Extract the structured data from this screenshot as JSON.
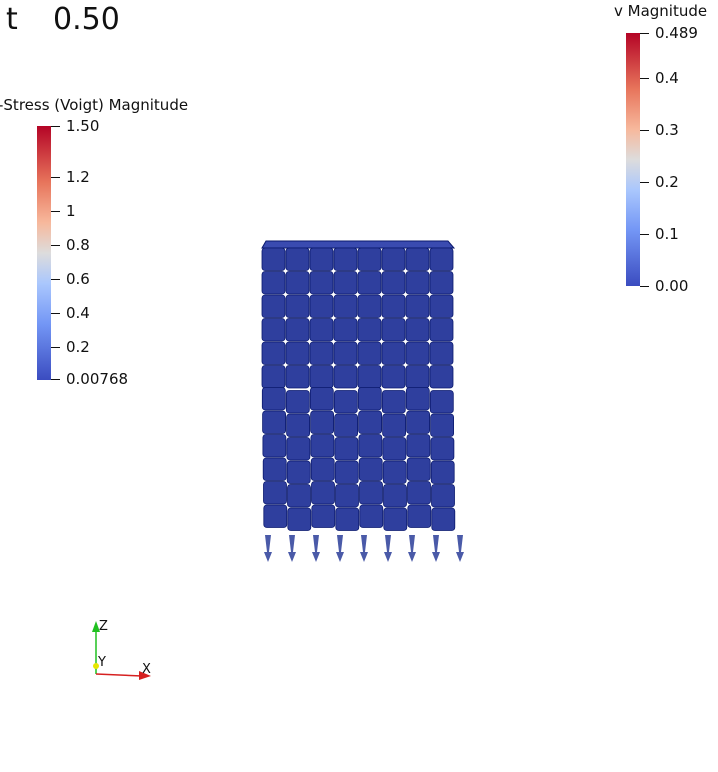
{
  "time": {
    "label": "t",
    "value": "0.50"
  },
  "stress_legend": {
    "title": "-Stress (Voigt) Magnitude",
    "labels": [
      "1.50",
      "1.2",
      "1",
      "0.8",
      "0.6",
      "0.4",
      "0.2",
      "0.00768"
    ]
  },
  "velocity_legend": {
    "title": "v Magnitude",
    "labels": [
      "0.489",
      "0.4",
      "0.3",
      "0.2",
      "0.1",
      "0.00"
    ]
  },
  "axes": {
    "x": "X",
    "y": "Y",
    "z": "Z"
  },
  "colors": {
    "mesh_fill": "#2f3f9e",
    "mesh_edge": "#0b1a6e",
    "x_axis": "#d62020",
    "y_axis": "#e6e600",
    "z_axis": "#20c020"
  }
}
